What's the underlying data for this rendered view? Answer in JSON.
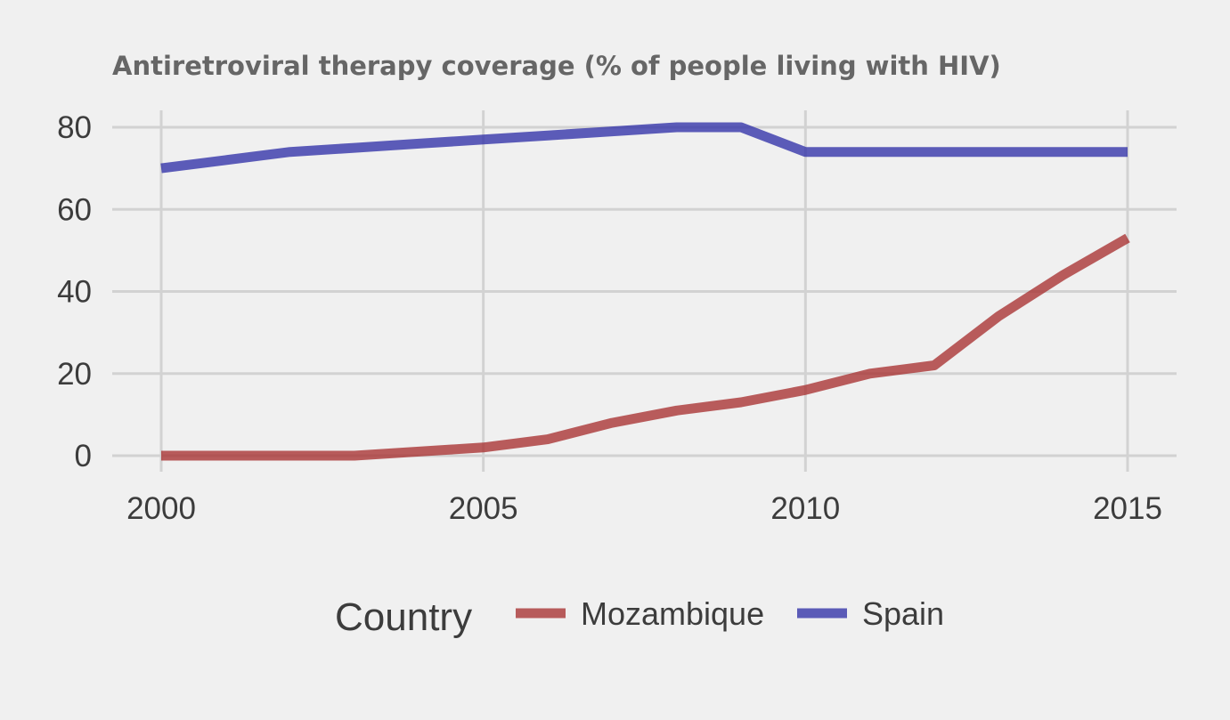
{
  "chart_data": {
    "type": "line",
    "title": "Antiretroviral therapy coverage (% of people living with HIV)",
    "xlabel": "",
    "ylabel": "",
    "x": [
      2000,
      2001,
      2002,
      2003,
      2004,
      2005,
      2006,
      2007,
      2008,
      2009,
      2010,
      2011,
      2012,
      2013,
      2014,
      2015
    ],
    "xlim": [
      2000,
      2015
    ],
    "ylim": [
      0,
      80
    ],
    "xticks": [
      2000,
      2005,
      2010,
      2015
    ],
    "yticks": [
      0,
      20,
      40,
      60,
      80
    ],
    "grid": true,
    "legend": {
      "title": "Country",
      "placement": "bottom"
    },
    "series": [
      {
        "name": "Mozambique",
        "color": "#a52a2a",
        "values": [
          0,
          0,
          0,
          0,
          1,
          2,
          4,
          8,
          11,
          13,
          16,
          20,
          22,
          34,
          44,
          53
        ]
      },
      {
        "name": "Spain",
        "color": "#2a2aa5",
        "values": [
          70,
          72,
          74,
          75,
          76,
          77,
          78,
          79,
          80,
          80,
          74,
          74,
          74,
          74,
          74,
          74
        ]
      }
    ]
  }
}
